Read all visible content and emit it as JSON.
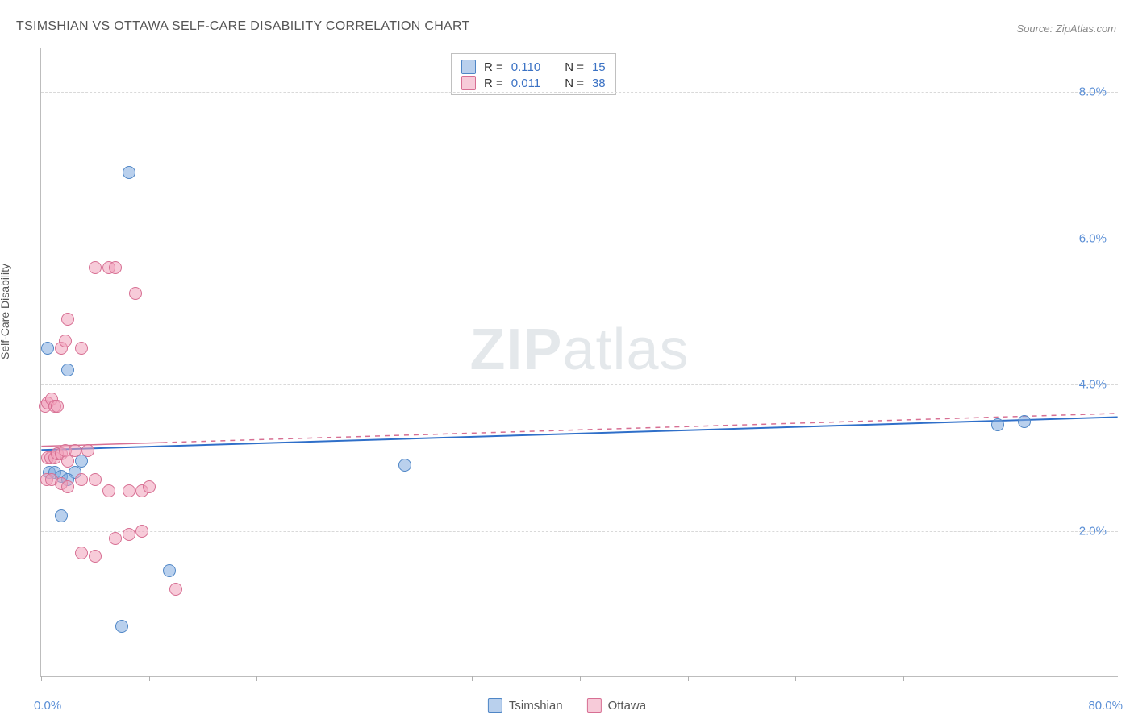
{
  "title": "TSIMSHIAN VS OTTAWA SELF-CARE DISABILITY CORRELATION CHART",
  "source": "Source: ZipAtlas.com",
  "ylabel": "Self-Care Disability",
  "watermark_a": "ZIP",
  "watermark_b": "atlas",
  "axes": {
    "xlim": [
      0,
      80
    ],
    "ylim": [
      0,
      8.6
    ],
    "x_label_min": "0.0%",
    "x_label_max": "80.0%",
    "x_ticks": [
      0,
      8,
      16,
      24,
      32,
      40,
      48,
      56,
      64,
      72,
      80
    ],
    "y_gridlines": [
      {
        "value": 2.0,
        "label": "2.0%"
      },
      {
        "value": 4.0,
        "label": "4.0%"
      },
      {
        "value": 6.0,
        "label": "6.0%"
      },
      {
        "value": 8.0,
        "label": "8.0%"
      }
    ]
  },
  "series": [
    {
      "name": "Tsimshian",
      "fill": "rgba(128,170,222,0.55)",
      "stroke": "#4f86c6",
      "marker_size": 16,
      "R": "0.110",
      "N": "15",
      "line": {
        "x1": 0,
        "y1": 3.1,
        "x2": 80,
        "y2": 3.55,
        "solid_until_x": 80,
        "color": "#2f6fc9",
        "width": 2
      },
      "points": [
        {
          "x": 0.5,
          "y": 4.5
        },
        {
          "x": 2.0,
          "y": 4.2
        },
        {
          "x": 0.6,
          "y": 2.8
        },
        {
          "x": 1.0,
          "y": 2.8
        },
        {
          "x": 2.5,
          "y": 2.8
        },
        {
          "x": 1.5,
          "y": 2.75
        },
        {
          "x": 2.0,
          "y": 2.7
        },
        {
          "x": 3.0,
          "y": 2.95
        },
        {
          "x": 1.5,
          "y": 2.2
        },
        {
          "x": 6.5,
          "y": 6.9
        },
        {
          "x": 9.5,
          "y": 1.45
        },
        {
          "x": 6.0,
          "y": 0.7
        },
        {
          "x": 27.0,
          "y": 2.9
        },
        {
          "x": 71.0,
          "y": 3.45
        },
        {
          "x": 73.0,
          "y": 3.5
        }
      ]
    },
    {
      "name": "Ottawa",
      "fill": "rgba(240,160,185,0.55)",
      "stroke": "#d76f93",
      "marker_size": 16,
      "R": "0.011",
      "N": "38",
      "line": {
        "x1": 0,
        "y1": 3.15,
        "x2": 80,
        "y2": 3.6,
        "solid_until_x": 9,
        "color": "#d76f93",
        "width": 1.5
      },
      "points": [
        {
          "x": 0.3,
          "y": 3.7
        },
        {
          "x": 0.5,
          "y": 3.75
        },
        {
          "x": 0.8,
          "y": 3.8
        },
        {
          "x": 1.0,
          "y": 3.7
        },
        {
          "x": 1.2,
          "y": 3.7
        },
        {
          "x": 1.5,
          "y": 4.5
        },
        {
          "x": 1.8,
          "y": 4.6
        },
        {
          "x": 2.0,
          "y": 4.9
        },
        {
          "x": 0.5,
          "y": 3.0
        },
        {
          "x": 0.7,
          "y": 3.0
        },
        {
          "x": 1.0,
          "y": 3.0
        },
        {
          "x": 1.2,
          "y": 3.05
        },
        {
          "x": 1.5,
          "y": 3.05
        },
        {
          "x": 1.8,
          "y": 3.1
        },
        {
          "x": 2.0,
          "y": 2.95
        },
        {
          "x": 2.5,
          "y": 3.1
        },
        {
          "x": 3.5,
          "y": 3.1
        },
        {
          "x": 0.4,
          "y": 2.7
        },
        {
          "x": 0.8,
          "y": 2.7
        },
        {
          "x": 1.5,
          "y": 2.65
        },
        {
          "x": 2.0,
          "y": 2.6
        },
        {
          "x": 3.0,
          "y": 2.7
        },
        {
          "x": 4.0,
          "y": 2.7
        },
        {
          "x": 5.0,
          "y": 2.55
        },
        {
          "x": 6.5,
          "y": 2.55
        },
        {
          "x": 7.5,
          "y": 2.55
        },
        {
          "x": 3.0,
          "y": 4.5
        },
        {
          "x": 4.0,
          "y": 5.6
        },
        {
          "x": 5.0,
          "y": 5.6
        },
        {
          "x": 5.5,
          "y": 1.9
        },
        {
          "x": 6.5,
          "y": 1.95
        },
        {
          "x": 7.0,
          "y": 5.25
        },
        {
          "x": 3.0,
          "y": 1.7
        },
        {
          "x": 4.0,
          "y": 1.65
        },
        {
          "x": 7.5,
          "y": 2.0
        },
        {
          "x": 10.0,
          "y": 1.2
        },
        {
          "x": 5.5,
          "y": 5.6
        },
        {
          "x": 8.0,
          "y": 2.6
        }
      ]
    }
  ],
  "legend": {
    "items": [
      {
        "label": "Tsimshian",
        "fill": "rgba(128,170,222,0.55)",
        "stroke": "#4f86c6"
      },
      {
        "label": "Ottawa",
        "fill": "rgba(240,160,185,0.55)",
        "stroke": "#d76f93"
      }
    ]
  },
  "stats_labels": {
    "R": "R =",
    "N": "N ="
  }
}
